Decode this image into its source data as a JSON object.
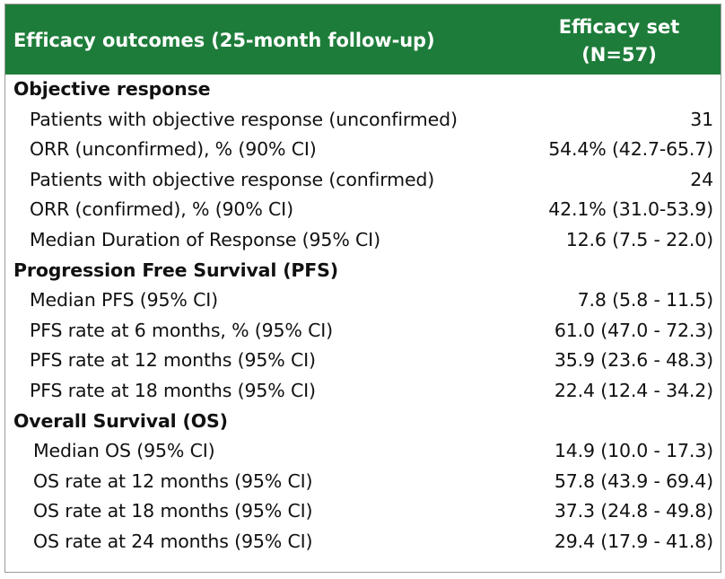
{
  "header": {
    "col1": "Efficacy outcomes (25-month follow-up)",
    "col2_line1": "Efficacy set",
    "col2_line2": "(N=57)"
  },
  "sections": {
    "objective": {
      "title": "Objective response",
      "rows": [
        {
          "label": "Patients with objective response (unconfirmed)",
          "value": "31"
        },
        {
          "label": "ORR (unconfirmed), % (90% CI)",
          "value": "54.4% (42.7-65.7)"
        },
        {
          "label": "Patients with objective response (confirmed)",
          "value": "24"
        },
        {
          "label": "ORR (confirmed), % (90% CI)",
          "value": "42.1% (31.0-53.9)"
        },
        {
          "label": "Median Duration of Response (95% CI)",
          "value": "12.6 (7.5 - 22.0)"
        }
      ]
    },
    "pfs": {
      "title": "Progression Free Survival (PFS)",
      "rows": [
        {
          "label": "Median PFS (95% CI)",
          "value": "7.8 (5.8 - 11.5)"
        },
        {
          "label": "PFS rate at 6 months, % (95% CI)",
          "value": "61.0 (47.0 - 72.3)"
        },
        {
          "label": "PFS rate at 12 months (95% CI)",
          "value": "35.9 (23.6 - 48.3)"
        },
        {
          "label": "PFS rate at 18 months (95% CI)",
          "value": "22.4 (12.4 - 34.2)"
        }
      ]
    },
    "os": {
      "title": "Overall Survival (OS)",
      "rows": [
        {
          "label": "Median OS (95% CI)",
          "value": "14.9 (10.0 - 17.3)"
        },
        {
          "label": "OS rate at 12 months (95% CI)",
          "value": "57.8 (43.9 - 69.4)"
        },
        {
          "label": "OS rate at 18 months (95% CI)",
          "value": "37.3 (24.8 - 49.8)"
        },
        {
          "label": "OS rate at 24 months (95% CI)",
          "value": "29.4 (17.9 - 41.8)"
        }
      ]
    }
  }
}
